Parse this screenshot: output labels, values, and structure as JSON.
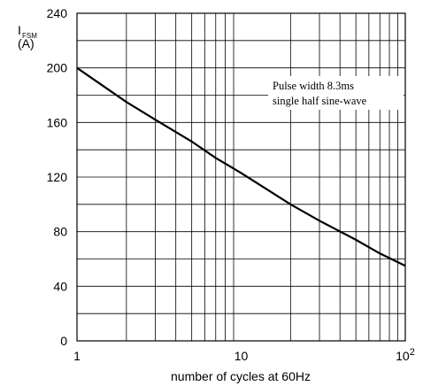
{
  "chart_data": {
    "type": "line",
    "x_scale": "log",
    "xlim": [
      1,
      100
    ],
    "ylim": [
      0,
      240
    ],
    "grid": true,
    "xlabel": "number of cycles at 60Hz",
    "ylabel_main": "I",
    "ylabel_sub": "FSM",
    "ylabel_unit": "(A)",
    "x_ticks": [
      {
        "value": 1,
        "label": "1"
      },
      {
        "value": 10,
        "label": "10"
      },
      {
        "value": 100,
        "label": "10",
        "sup": "2"
      }
    ],
    "y_ticks": [
      0,
      40,
      80,
      120,
      160,
      200,
      240
    ],
    "annotation": [
      "Pulse width 8.3ms",
      "single half sine-wave"
    ],
    "series": [
      {
        "x": [
          1,
          2,
          3,
          5,
          7,
          10,
          20,
          30,
          50,
          70,
          100
        ],
        "y": [
          200,
          175,
          162,
          146,
          134,
          123,
          100,
          88,
          74,
          64,
          55
        ]
      }
    ]
  }
}
